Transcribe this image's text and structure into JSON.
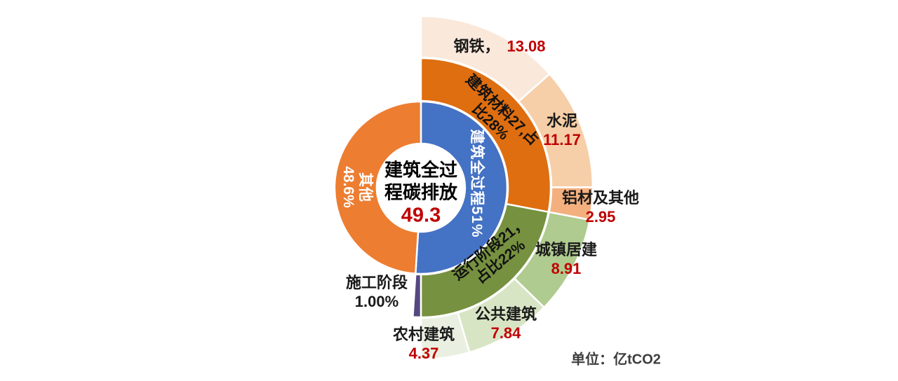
{
  "center_label": {
    "line1": "建筑全过",
    "line2": "程碳排放",
    "value": "49.3"
  },
  "unit_note": "单位：亿tCO2",
  "ring_labels": {
    "whole_process": "建筑全过程51%",
    "other": {
      "line1": "其他",
      "line2": "48.6%"
    },
    "materials": {
      "line1": "建筑材料27,占",
      "line2": "比28%"
    },
    "operation": {
      "line1": "运行阶段21，",
      "line2": "占比22%"
    }
  },
  "callouts": {
    "steel": {
      "name": "钢铁，",
      "value": "13.08"
    },
    "cement": {
      "name": "水泥",
      "value": "11.17"
    },
    "aluminum": {
      "name": "铝材及其他",
      "value": "2.95"
    },
    "urban": {
      "name": "城镇居建",
      "value": "8.91"
    },
    "public": {
      "name": "公共建筑",
      "value": "7.84"
    },
    "rural": {
      "name": "农村建筑",
      "value": "4.37"
    },
    "construction": {
      "name": "施工阶段",
      "value": "1.00%"
    }
  },
  "colors": {
    "value_red": "#C00000",
    "label_black": "#1a1a1a",
    "inner_blue": "#4472C4",
    "inner_orange": "#ED7D31",
    "materials_orange": "#DE6E10",
    "operation_green": "#76913F",
    "construction_purple": "#53497F",
    "steel_peach": "#FAE8DB",
    "cement_peach": "#F6CFA8",
    "aluminum_peach": "#F3B07E",
    "urban_green": "#AFCB8F",
    "public_green": "#D8E5C5",
    "rural_green": "#EAF0E1"
  },
  "chart_data": {
    "type": "sunburst",
    "title": "建筑全过程碳排放",
    "total_value": 49.3,
    "unit": "亿tCO2",
    "rings": [
      {
        "name": "inner-ring",
        "segments": [
          {
            "label": "建筑全过程",
            "share": "51%",
            "color": "#4472C4",
            "start": 0,
            "end": 183.6
          },
          {
            "label": "其他",
            "share": "48.6%",
            "color": "#ED7D31",
            "start": 183.6,
            "end": 360
          }
        ]
      },
      {
        "name": "middle-ring",
        "segments": [
          {
            "label": "建筑材料",
            "value": 27,
            "share": "28%",
            "color": "#DE6E10",
            "start": 0,
            "end": 100.8
          },
          {
            "label": "运行阶段",
            "value": 21,
            "share": "22%",
            "color": "#76913F",
            "start": 100.8,
            "end": 180
          },
          {
            "label": "施工阶段",
            "value": 0.5,
            "share": "1.00%",
            "color": "#53497F",
            "start": 180,
            "end": 183.6
          }
        ]
      },
      {
        "name": "outer-ring",
        "segments": [
          {
            "label": "钢铁",
            "value": 13.08,
            "color": "#FAE8DB",
            "start": 0,
            "end": 48.47
          },
          {
            "label": "水泥",
            "value": 11.17,
            "color": "#F6CFA8",
            "start": 48.47,
            "end": 89.86
          },
          {
            "label": "铝材及其他",
            "value": 2.95,
            "color": "#F3B07E",
            "start": 89.86,
            "end": 100.8
          },
          {
            "label": "城镇居建",
            "value": 8.91,
            "color": "#AFCB8F",
            "start": 100.8,
            "end": 134.21
          },
          {
            "label": "公共建筑",
            "value": 7.84,
            "color": "#D8E5C5",
            "start": 134.21,
            "end": 163.61
          },
          {
            "label": "农村建筑",
            "value": 4.37,
            "color": "#EAF0E1",
            "start": 163.61,
            "end": 180
          }
        ]
      }
    ]
  }
}
